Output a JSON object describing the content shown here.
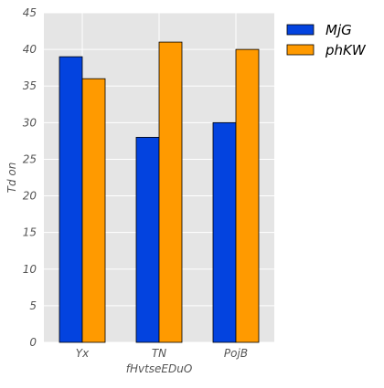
{
  "chart_data": {
    "type": "bar",
    "title": "",
    "xlabel": "fHvtseEDuO",
    "ylabel": "Td on",
    "categories": [
      "Yx",
      "TN",
      "PojB"
    ],
    "series": [
      {
        "name": "MjG",
        "values": [
          39,
          28,
          30
        ],
        "color": "#0343df"
      },
      {
        "name": "phKW",
        "values": [
          36,
          41,
          40
        ],
        "color": "#ff9a00"
      }
    ],
    "ylim": [
      0,
      45
    ],
    "yticks": [
      0,
      5,
      10,
      15,
      20,
      25,
      30,
      35,
      40,
      45
    ],
    "grid": true,
    "legend_position": "outside-top-right",
    "background": "#e5e5e5",
    "gridline_color": "#ffffff"
  }
}
